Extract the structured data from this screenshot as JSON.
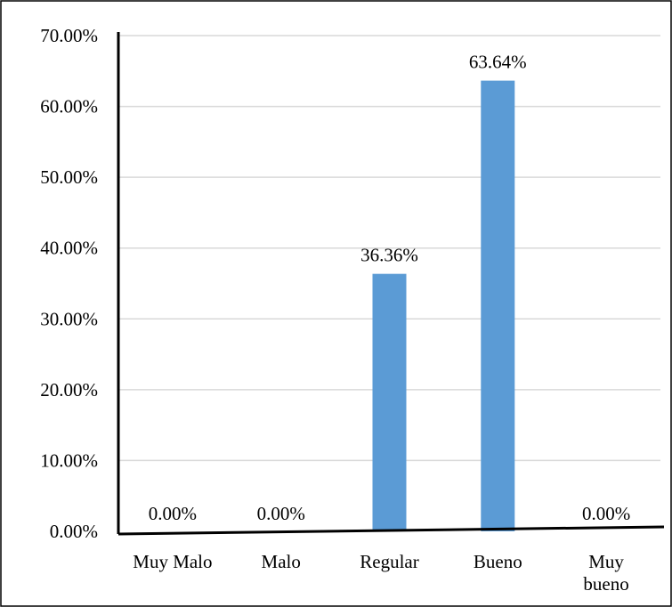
{
  "chart_data": {
    "type": "bar",
    "title": "",
    "xlabel": "",
    "ylabel": "",
    "categories": [
      [
        "Muy Malo"
      ],
      [
        "Malo"
      ],
      [
        "Regular"
      ],
      [
        "Bueno"
      ],
      [
        "Muy",
        "bueno"
      ]
    ],
    "values": [
      0,
      0,
      36.36,
      63.64,
      0
    ],
    "data_labels": [
      "0.00%",
      "0.00%",
      "36.36%",
      "63.64%",
      "0.00%"
    ],
    "ylim": [
      0,
      70
    ],
    "yticks": [
      {
        "value": 0,
        "label": "0.00%"
      },
      {
        "value": 10,
        "label": "10.00%"
      },
      {
        "value": 20,
        "label": "20.00%"
      },
      {
        "value": 30,
        "label": "30.00%"
      },
      {
        "value": 40,
        "label": "40.00%"
      },
      {
        "value": 50,
        "label": "50.00%"
      },
      {
        "value": 60,
        "label": "60.00%"
      },
      {
        "value": 70,
        "label": "70.00%"
      }
    ],
    "grid": true,
    "legend": "none",
    "bar_color": "#5b9bd5",
    "grid_color": "#d9d9d9"
  }
}
